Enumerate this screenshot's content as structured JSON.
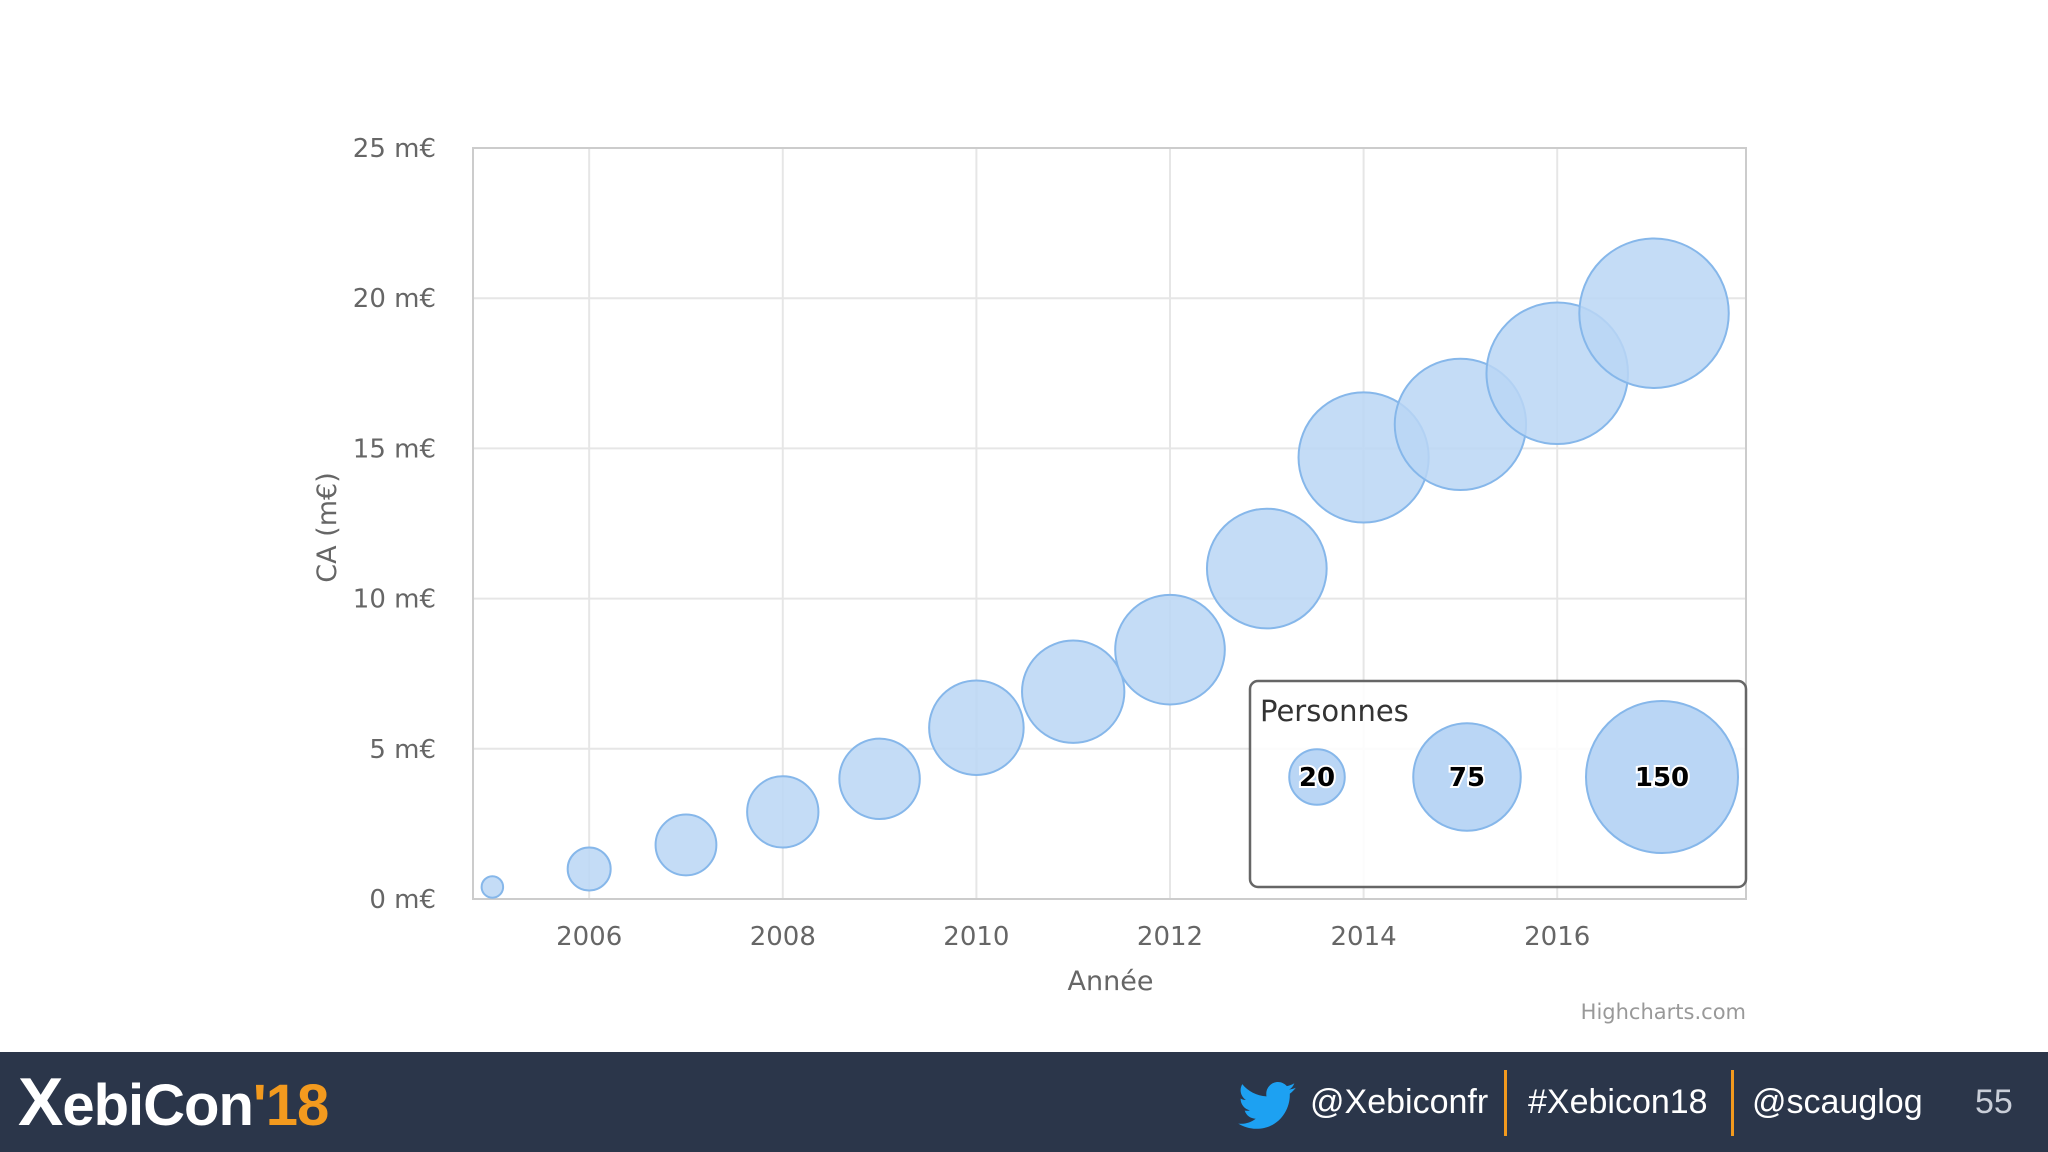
{
  "chart_data": {
    "type": "scatter",
    "subtype": "bubble",
    "title": "",
    "xlabel": "Année",
    "ylabel": "CA (m€)",
    "xlim": [
      2004.8,
      2017.95
    ],
    "ylim": [
      0,
      25
    ],
    "x_ticks": [
      2006,
      2008,
      2010,
      2012,
      2014,
      2016
    ],
    "y_ticks": [
      0,
      5,
      10,
      15,
      20,
      25
    ],
    "y_tick_labels": [
      "0 m€",
      "5 m€",
      "10 m€",
      "15 m€",
      "20 m€",
      "25 m€"
    ],
    "grid": true,
    "series": [
      {
        "name": "CA",
        "x": [
          2005,
          2006,
          2007,
          2008,
          2009,
          2010,
          2011,
          2012,
          2013,
          2014,
          2015,
          2016,
          2017
        ],
        "y": [
          0.4,
          1.0,
          1.8,
          2.9,
          4.0,
          5.7,
          6.9,
          8.3,
          11.0,
          14.7,
          15.8,
          17.5,
          19.5
        ],
        "size": [
          3,
          12,
          24,
          33,
          42,
          58,
          68,
          78,
          93,
          110,
          112,
          130,
          145
        ]
      }
    ],
    "size_legend": {
      "title": "Personnes",
      "values": [
        20,
        75,
        150
      ],
      "position": "bottom-right"
    },
    "colors": {
      "bubble_fill": "#bad6f5",
      "bubble_stroke": "#86b7ea",
      "grid": "#e6e6e6",
      "axis_text": "#666666"
    },
    "credits": "Highcharts.com"
  },
  "footer": {
    "logo_main": "ebiCon",
    "logo_x": "X",
    "logo_year": "'18",
    "twitter_handle": "@Xebiconfr",
    "hashtag": "#Xebicon18",
    "speaker_handle": "@scauglog",
    "page_number": "55"
  }
}
